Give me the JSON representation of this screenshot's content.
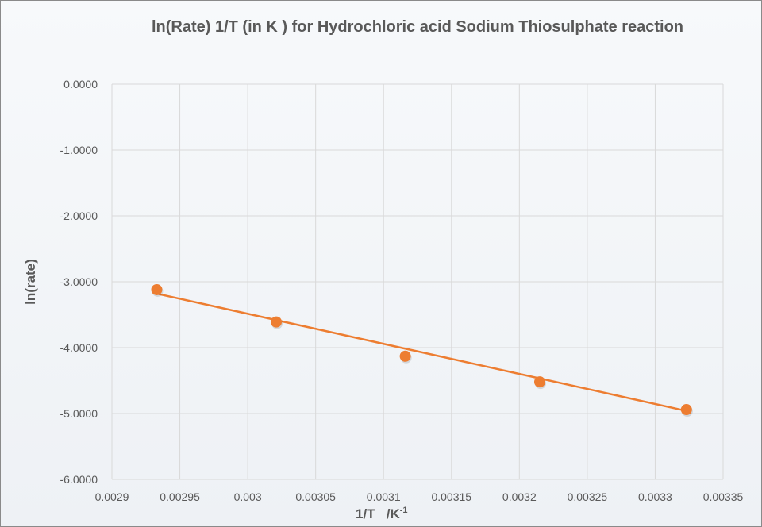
{
  "chart_data": {
    "type": "scatter",
    "title": "ln(Rate)  1/T (in K ) for Hydrochloric acid Sodium Thiosulphate reaction",
    "xlabel": "1/T   /K",
    "xlabel_superscript": "-1",
    "ylabel": "ln(rate)",
    "xlim": [
      0.0029,
      0.00335
    ],
    "ylim": [
      -6,
      0
    ],
    "grid": true,
    "x_ticks": [
      "0.0029",
      "0.00295",
      "0.003",
      "0.00305",
      "0.0031",
      "0.00315",
      "0.0032",
      "0.00325",
      "0.0033",
      "0.00335"
    ],
    "y_ticks": [
      "0.0000",
      "-1.0000",
      "-2.0000",
      "-3.0000",
      "-4.0000",
      "-5.0000",
      "-6.0000"
    ],
    "series": [
      {
        "name": "ln(rate)",
        "color": "#ed7d31",
        "x": [
          0.002933,
          0.003021,
          0.003116,
          0.003215,
          0.003323
        ],
        "y": [
          -3.12,
          -3.61,
          -4.13,
          -4.52,
          -4.94
        ]
      }
    ],
    "trendline": {
      "type": "linear",
      "color": "#ed7d31",
      "x": [
        0.002933,
        0.003323
      ],
      "y": [
        -3.18,
        -4.96
      ]
    }
  }
}
